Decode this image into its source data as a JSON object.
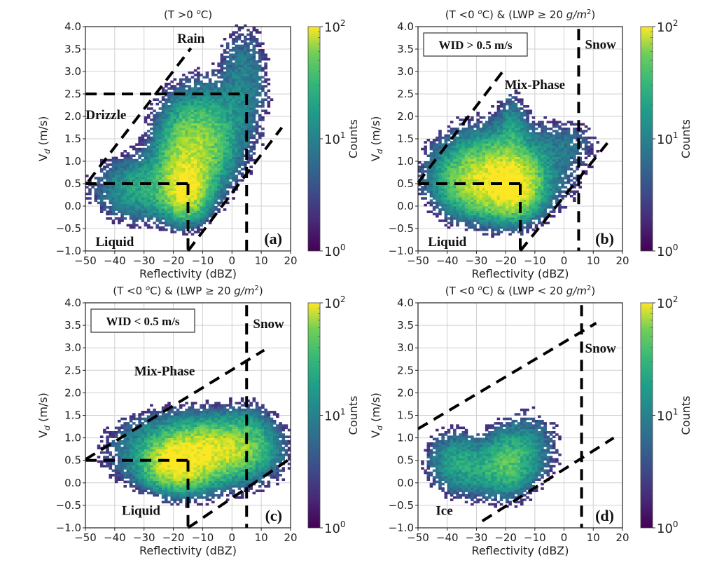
{
  "chart_data": [
    {
      "type": "heatmap",
      "panel_label": "(a)",
      "title": "(T >0 °C)",
      "title_parts": {
        "pre": "(T >0 ",
        "sup": "o",
        "post": "C)"
      },
      "xlabel": "Reflectivity (dBZ)",
      "ylabel": "V_d (m/s)",
      "xlim": [
        -50,
        20
      ],
      "ylim": [
        -1.0,
        4.0
      ],
      "xticks": [
        "−50",
        "−40",
        "−30",
        "−20",
        "−10",
        "0",
        "10",
        "20"
      ],
      "xtick_values": [
        -50,
        -40,
        -30,
        -20,
        -10,
        0,
        10,
        20
      ],
      "yticks": [
        "−1.0",
        "−0.5",
        "0.0",
        "0.5",
        "1.0",
        "1.5",
        "2.0",
        "2.5",
        "3.0",
        "3.5",
        "4.0"
      ],
      "ytick_values": [
        -1.0,
        -0.5,
        0.0,
        0.5,
        1.0,
        1.5,
        2.0,
        2.5,
        3.0,
        3.5,
        4.0
      ],
      "grid": true,
      "colorbar": {
        "label": "Counts",
        "scale": "log",
        "range": [
          1,
          100
        ],
        "ticks": [
          "10^0",
          "10^1",
          "10^2"
        ]
      },
      "region_labels": [
        {
          "text": "Rain",
          "x": -14,
          "y": 3.75
        },
        {
          "text": "Drizzle",
          "x": -43,
          "y": 2.05
        },
        {
          "text": "Liquid",
          "x": -40,
          "y": -0.78
        }
      ],
      "boundary_lines": [
        {
          "x": [
            -50,
            -26
          ],
          "y": [
            2.5,
            2.5
          ]
        },
        {
          "x": [
            -26,
            5
          ],
          "y": [
            2.5,
            2.5
          ]
        },
        {
          "x": [
            5,
            5
          ],
          "y": [
            2.5,
            -1.0
          ]
        },
        {
          "x": [
            -50,
            -15
          ],
          "y": [
            0.5,
            0.5
          ]
        },
        {
          "x": [
            -15,
            -15
          ],
          "y": [
            0.5,
            -1.0
          ]
        },
        {
          "x": [
            -49,
            -14
          ],
          "y": [
            0.55,
            3.52
          ]
        },
        {
          "x": [
            -15,
            17
          ],
          "y": [
            -1.0,
            1.75
          ]
        }
      ],
      "density_blobs": [
        {
          "x": -16,
          "y": 0.4,
          "sx": 4,
          "sy": 0.35,
          "peak": 100
        },
        {
          "x": -14,
          "y": 1.1,
          "sx": 6,
          "sy": 0.5,
          "peak": 45
        },
        {
          "x": -10,
          "y": 1.6,
          "sx": 8,
          "sy": 0.6,
          "peak": 25
        },
        {
          "x": -28,
          "y": 0.4,
          "sx": 10,
          "sy": 0.4,
          "peak": 18
        },
        {
          "x": 4,
          "y": 2.8,
          "sx": 5,
          "sy": 0.7,
          "peak": 8
        }
      ]
    },
    {
      "type": "heatmap",
      "panel_label": "(b)",
      "title": "(T <0 °C) & (LWP ≥ 20 g/m²)",
      "title_parts": {
        "pre": "(T <0 ",
        "sup": "o",
        "post": "C) & (LWP ≥ 20 ",
        "italic": "g/m",
        "sup2": "2",
        "end": ")"
      },
      "annotation_box": "WID > 0.5 m/s",
      "xlabel": "Reflectivity (dBZ)",
      "ylabel": "V_d (m/s)",
      "xlim": [
        -50,
        20
      ],
      "ylim": [
        -1.0,
        4.0
      ],
      "xticks": [
        "−50",
        "−40",
        "−30",
        "−20",
        "−10",
        "0",
        "10",
        "20"
      ],
      "xtick_values": [
        -50,
        -40,
        -30,
        -20,
        -10,
        0,
        10,
        20
      ],
      "yticks": [
        "−1.0",
        "−0.5",
        "0.0",
        "0.5",
        "1.0",
        "1.5",
        "2.0",
        "2.5",
        "3.0",
        "3.5",
        "4.0"
      ],
      "ytick_values": [
        -1.0,
        -0.5,
        0.0,
        0.5,
        1.0,
        1.5,
        2.0,
        2.5,
        3.0,
        3.5,
        4.0
      ],
      "grid": true,
      "colorbar": {
        "label": "Counts",
        "scale": "log",
        "range": [
          1,
          100
        ],
        "ticks": [
          "10^0",
          "10^1",
          "10^2"
        ]
      },
      "region_labels": [
        {
          "text": "Snow",
          "x": 12.5,
          "y": 3.62
        },
        {
          "text": "Mix-Phase",
          "x": -10,
          "y": 2.72
        },
        {
          "text": "Liquid",
          "x": -40,
          "y": -0.78
        }
      ],
      "boundary_lines": [
        {
          "x": [
            5,
            5
          ],
          "y": [
            3.95,
            -1.0
          ]
        },
        {
          "x": [
            -50,
            -15
          ],
          "y": [
            0.5,
            0.5
          ]
        },
        {
          "x": [
            -15,
            -15
          ],
          "y": [
            0.5,
            -1.0
          ]
        },
        {
          "x": [
            -50,
            -21
          ],
          "y": [
            0.52,
            3.0
          ]
        },
        {
          "x": [
            -15,
            16
          ],
          "y": [
            -1.0,
            1.5
          ]
        }
      ],
      "density_blobs": [
        {
          "x": -18,
          "y": 0.45,
          "sx": 5,
          "sy": 0.35,
          "peak": 100
        },
        {
          "x": -27,
          "y": 0.55,
          "sx": 8,
          "sy": 0.4,
          "peak": 60
        },
        {
          "x": -22,
          "y": 0.8,
          "sx": 12,
          "sy": 0.55,
          "peak": 25
        },
        {
          "x": -18,
          "y": 1.6,
          "sx": 3,
          "sy": 0.5,
          "peak": 10
        },
        {
          "x": 2,
          "y": 1.4,
          "sx": 6,
          "sy": 0.3,
          "peak": 4
        }
      ]
    },
    {
      "type": "heatmap",
      "panel_label": "(c)",
      "title": "(T <0 °C) & (LWP ≥ 20 g/m²)",
      "title_parts": {
        "pre": "(T <0 ",
        "sup": "o",
        "post": "C) & (LWP ≥ 20 ",
        "italic": "g/m",
        "sup2": "2",
        "end": ")"
      },
      "annotation_box": "WID < 0.5 m/s",
      "xlabel": "Reflectivity (dBZ)",
      "ylabel": "V_d (m/s)",
      "xlim": [
        -50,
        20
      ],
      "ylim": [
        -1.0,
        4.0
      ],
      "xticks": [
        "−50",
        "−40",
        "−30",
        "−20",
        "−10",
        "0",
        "10",
        "20"
      ],
      "xtick_values": [
        -50,
        -40,
        -30,
        -20,
        -10,
        0,
        10,
        20
      ],
      "yticks": [
        "−1.0",
        "−0.5",
        "0.0",
        "0.5",
        "1.0",
        "1.5",
        "2.0",
        "2.5",
        "3.0",
        "3.5",
        "4.0"
      ],
      "ytick_values": [
        -1.0,
        -0.5,
        0.0,
        0.5,
        1.0,
        1.5,
        2.0,
        2.5,
        3.0,
        3.5,
        4.0
      ],
      "grid": true,
      "colorbar": {
        "label": "Counts",
        "scale": "log",
        "range": [
          1,
          100
        ],
        "ticks": [
          "10^0",
          "10^1",
          "10^2"
        ]
      },
      "region_labels": [
        {
          "text": "Snow",
          "x": 12.5,
          "y": 3.55
        },
        {
          "text": "Mix-Phase",
          "x": -23,
          "y": 2.5
        },
        {
          "text": "Liquid",
          "x": -31,
          "y": -0.6
        }
      ],
      "boundary_lines": [
        {
          "x": [
            5,
            5
          ],
          "y": [
            3.95,
            -1.0
          ]
        },
        {
          "x": [
            -50,
            -15
          ],
          "y": [
            0.5,
            0.5
          ]
        },
        {
          "x": [
            -15,
            -15
          ],
          "y": [
            0.5,
            -1.0
          ]
        },
        {
          "x": [
            -50,
            11
          ],
          "y": [
            0.52,
            2.95
          ]
        },
        {
          "x": [
            -15,
            19
          ],
          "y": [
            -1.0,
            0.5
          ]
        }
      ],
      "density_blobs": [
        {
          "x": -18,
          "y": 0.45,
          "sx": 6,
          "sy": 0.3,
          "peak": 100
        },
        {
          "x": -5,
          "y": 0.75,
          "sx": 8,
          "sy": 0.3,
          "peak": 55
        },
        {
          "x": -12,
          "y": 0.7,
          "sx": 14,
          "sy": 0.45,
          "peak": 30
        },
        {
          "x": 5,
          "y": 1.0,
          "sx": 5,
          "sy": 0.4,
          "peak": 12
        }
      ]
    },
    {
      "type": "heatmap",
      "panel_label": "(d)",
      "title": "(T <0 °C) & (LWP < 20 g/m²)",
      "title_parts": {
        "pre": "(T <0 ",
        "sup": "o",
        "post": "C) & (LWP < 20 ",
        "italic": "g/m",
        "sup2": "2",
        "end": ")"
      },
      "xlabel": "Reflectivity (dBZ)",
      "ylabel": "V_d (m/s)",
      "xlim": [
        -50,
        20
      ],
      "ylim": [
        -1.0,
        4.0
      ],
      "xticks": [
        "−50",
        "−40",
        "−30",
        "−20",
        "−10",
        "0",
        "10",
        "20"
      ],
      "xtick_values": [
        -50,
        -40,
        -30,
        -20,
        -10,
        0,
        10,
        20
      ],
      "yticks": [
        "−1.0",
        "−0.5",
        "0.0",
        "0.5",
        "1.0",
        "1.5",
        "2.0",
        "2.5",
        "3.0",
        "3.5",
        "4.0"
      ],
      "ytick_values": [
        -1.0,
        -0.5,
        0.0,
        0.5,
        1.0,
        1.5,
        2.0,
        2.5,
        3.0,
        3.5,
        4.0
      ],
      "grid": true,
      "colorbar": {
        "label": "Counts",
        "scale": "log",
        "range": [
          1,
          100
        ],
        "ticks": [
          "10^0",
          "10^1",
          "10^2"
        ]
      },
      "region_labels": [
        {
          "text": "Snow",
          "x": 12.5,
          "y": 3.0
        },
        {
          "text": "Ice",
          "x": -41,
          "y": -0.6
        }
      ],
      "boundary_lines": [
        {
          "x": [
            6,
            6
          ],
          "y": [
            3.95,
            -1.0
          ]
        },
        {
          "x": [
            -50,
            11
          ],
          "y": [
            1.2,
            3.55
          ]
        },
        {
          "x": [
            -28,
            17
          ],
          "y": [
            -0.85,
            1.0
          ]
        }
      ],
      "density_blobs": [
        {
          "x": -19,
          "y": 0.45,
          "sx": 5,
          "sy": 0.4,
          "peak": 22
        },
        {
          "x": -30,
          "y": 0.3,
          "sx": 8,
          "sy": 0.35,
          "peak": 14
        },
        {
          "x": -38,
          "y": 0.6,
          "sx": 5,
          "sy": 0.35,
          "peak": 8
        },
        {
          "x": -12,
          "y": 0.8,
          "sx": 6,
          "sy": 0.45,
          "peak": 8
        }
      ]
    }
  ]
}
